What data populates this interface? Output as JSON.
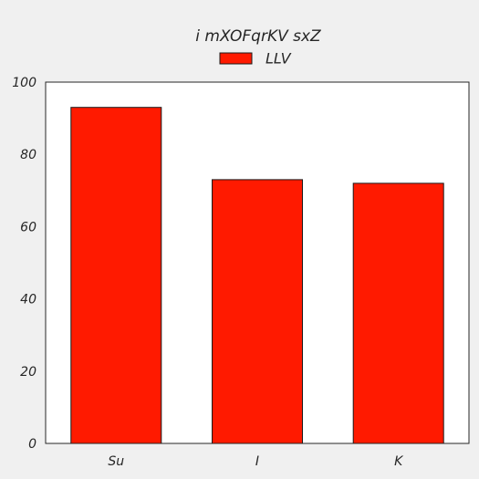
{
  "chart_data": {
    "type": "bar",
    "title": "i mXOFqrKV sxZ",
    "xlabel": "",
    "ylabel": "",
    "categories": [
      "Su",
      "I",
      "K"
    ],
    "series": [
      {
        "name": "LLV",
        "values": [
          93,
          73,
          72
        ],
        "color": "#ff1a00"
      }
    ],
    "ylim": [
      0,
      100
    ],
    "yticks": [
      0,
      20,
      40,
      60,
      80,
      100
    ],
    "grid": false,
    "legend": "top-center",
    "colors": {
      "background": "#f0f0f0",
      "plot_background": "#ffffff",
      "bar_edge": "#1a1a1a",
      "axis": "#262626"
    }
  }
}
